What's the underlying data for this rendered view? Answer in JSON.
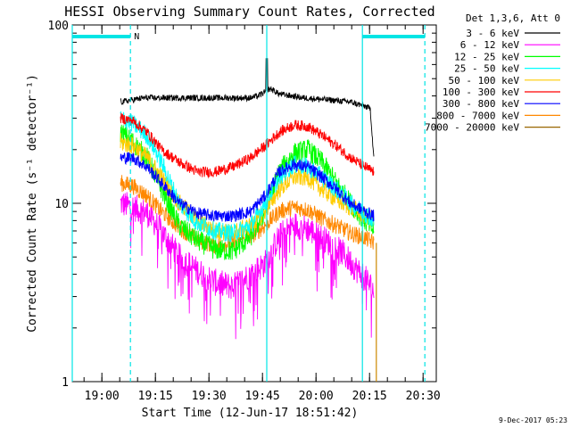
{
  "chart_data": {
    "type": "line",
    "title": "HESSI Observing Summary Count Rates, Corrected",
    "xlabel": "Start Time (12-Jun-17 18:51:42)",
    "ylabel": "Corrected Count Rate (s⁻¹ detector⁻¹)",
    "footer": "9-Dec-2017 05:23",
    "x_unit": "minutes after 18:51:42",
    "xlim": [
      0,
      102
    ],
    "ylim": [
      1,
      100
    ],
    "y_scale": "log",
    "x_ticks": [
      {
        "x": 8.3,
        "label": "19:00"
      },
      {
        "x": 23.3,
        "label": "19:15"
      },
      {
        "x": 38.3,
        "label": "19:30"
      },
      {
        "x": 53.3,
        "label": "19:45"
      },
      {
        "x": 68.3,
        "label": "20:00"
      },
      {
        "x": 83.3,
        "label": "20:15"
      },
      {
        "x": 98.3,
        "label": "20:30"
      }
    ],
    "y_ticks": [
      {
        "y": 1,
        "label": "1"
      },
      {
        "y": 10,
        "label": "10"
      },
      {
        "y": 100,
        "label": "100"
      }
    ],
    "legend_position": "top-right (outside plot)",
    "legend_header": "Det 1,3,6, Att 0",
    "series": [
      {
        "name": "3 - 6 keV",
        "color": "#000000",
        "noise": 0.04,
        "points": [
          [
            13.5,
            37
          ],
          [
            20,
            39
          ],
          [
            30,
            39
          ],
          [
            40,
            39
          ],
          [
            50,
            39
          ],
          [
            52,
            40
          ],
          [
            54,
            42
          ],
          [
            55.5,
            44
          ],
          [
            58,
            41
          ],
          [
            65,
            39
          ],
          [
            72,
            38
          ],
          [
            78,
            37
          ],
          [
            82,
            35
          ],
          [
            83.5,
            34
          ],
          [
            84.5,
            18
          ]
        ],
        "spike": [
          54.5,
          68
        ]
      },
      {
        "name": "6 - 12 keV",
        "color": "#ff00ff",
        "noise": 0.18,
        "points": [
          [
            13.5,
            10
          ],
          [
            17,
            9.5
          ],
          [
            21,
            8.8
          ],
          [
            25,
            7
          ],
          [
            30,
            5
          ],
          [
            35,
            4.2
          ],
          [
            40,
            3.6
          ],
          [
            45,
            3.4
          ],
          [
            50,
            4
          ],
          [
            54,
            4.6
          ],
          [
            58,
            6.5
          ],
          [
            62,
            7.6
          ],
          [
            66,
            7.2
          ],
          [
            72,
            6
          ],
          [
            76,
            5.2
          ],
          [
            80,
            4.2
          ],
          [
            83,
            3.6
          ],
          [
            84.5,
            3.2
          ]
        ]
      },
      {
        "name": "12 - 25 keV",
        "color": "#00ff00",
        "noise": 0.14,
        "points": [
          [
            13.5,
            25
          ],
          [
            17,
            22
          ],
          [
            21,
            18
          ],
          [
            25,
            12
          ],
          [
            30,
            7.5
          ],
          [
            35,
            6.2
          ],
          [
            40,
            5.5
          ],
          [
            45,
            5.4
          ],
          [
            50,
            6.5
          ],
          [
            54,
            9
          ],
          [
            58,
            15
          ],
          [
            62,
            19
          ],
          [
            66,
            20
          ],
          [
            70,
            17
          ],
          [
            74,
            13
          ],
          [
            78,
            10
          ],
          [
            82,
            8
          ],
          [
            84.5,
            7
          ]
        ]
      },
      {
        "name": "25 - 50 keV",
        "color": "#00ffff",
        "noise": 0.12,
        "points": [
          [
            13.5,
            30
          ],
          [
            17,
            28
          ],
          [
            21,
            24
          ],
          [
            25,
            17
          ],
          [
            30,
            10
          ],
          [
            35,
            7.8
          ],
          [
            40,
            7
          ],
          [
            45,
            6.8
          ],
          [
            50,
            7.5
          ],
          [
            54,
            10
          ],
          [
            58,
            14
          ],
          [
            62,
            16.5
          ],
          [
            66,
            16
          ],
          [
            70,
            14
          ],
          [
            74,
            12
          ],
          [
            78,
            10
          ],
          [
            82,
            8.8
          ],
          [
            84.5,
            8
          ]
        ]
      },
      {
        "name": "50 - 100 keV",
        "color": "#ffcc00",
        "noise": 0.12,
        "points": [
          [
            13.5,
            22
          ],
          [
            17,
            21
          ],
          [
            21,
            18
          ],
          [
            25,
            14
          ],
          [
            30,
            10
          ],
          [
            35,
            8
          ],
          [
            40,
            7
          ],
          [
            45,
            6.8
          ],
          [
            50,
            7.5
          ],
          [
            54,
            9
          ],
          [
            58,
            12
          ],
          [
            62,
            14
          ],
          [
            66,
            14
          ],
          [
            70,
            12
          ],
          [
            74,
            10.5
          ],
          [
            78,
            9.5
          ],
          [
            82,
            8.5
          ],
          [
            84.5,
            8
          ]
        ]
      },
      {
        "name": "100 - 300 keV",
        "color": "#ff0000",
        "noise": 0.07,
        "points": [
          [
            13.5,
            30
          ],
          [
            17,
            29
          ],
          [
            21,
            25
          ],
          [
            25,
            20
          ],
          [
            30,
            17
          ],
          [
            35,
            15
          ],
          [
            40,
            15
          ],
          [
            45,
            16
          ],
          [
            50,
            18
          ],
          [
            54,
            21
          ],
          [
            58,
            25
          ],
          [
            62,
            27.5
          ],
          [
            66,
            27
          ],
          [
            70,
            24
          ],
          [
            74,
            21
          ],
          [
            78,
            18
          ],
          [
            82,
            16
          ],
          [
            84.5,
            15
          ]
        ]
      },
      {
        "name": "300 - 800 keV",
        "color": "#0000ff",
        "noise": 0.08,
        "points": [
          [
            13.5,
            18
          ],
          [
            17,
            18
          ],
          [
            21,
            16
          ],
          [
            25,
            13
          ],
          [
            30,
            10
          ],
          [
            35,
            8.8
          ],
          [
            40,
            8.5
          ],
          [
            45,
            8.5
          ],
          [
            50,
            9
          ],
          [
            54,
            11
          ],
          [
            58,
            15
          ],
          [
            62,
            16.5
          ],
          [
            66,
            16
          ],
          [
            70,
            14
          ],
          [
            74,
            12
          ],
          [
            78,
            10
          ],
          [
            82,
            9
          ],
          [
            84.5,
            8.5
          ]
        ]
      },
      {
        "name": "800 - 7000 keV",
        "color": "#ff8800",
        "noise": 0.11,
        "points": [
          [
            13.5,
            13
          ],
          [
            17,
            12.5
          ],
          [
            21,
            11
          ],
          [
            25,
            9
          ],
          [
            30,
            7.3
          ],
          [
            35,
            6.2
          ],
          [
            40,
            5.8
          ],
          [
            45,
            6
          ],
          [
            50,
            6.5
          ],
          [
            54,
            7.5
          ],
          [
            58,
            9
          ],
          [
            62,
            9.5
          ],
          [
            66,
            9.2
          ],
          [
            70,
            8.2
          ],
          [
            74,
            7.5
          ],
          [
            78,
            6.8
          ],
          [
            82,
            6.4
          ],
          [
            84.5,
            6
          ]
        ]
      },
      {
        "name": "7000 - 20000 keV",
        "color": "#996600",
        "noise": 0.0,
        "points": []
      }
    ],
    "annotations": {
      "night_bar_color": "#00e5e5",
      "night_bars": [
        [
          0,
          16.3
        ],
        [
          81.3,
          98.8
        ]
      ],
      "night_marker_label": "N",
      "night_marker_x": 17.3,
      "saa_solid_lines": [
        0,
        54.5,
        81.3
      ],
      "dashed_lines": [
        16.3,
        98.8
      ],
      "end_marker_x": 85.2,
      "end_marker_color": "#cc8800"
    }
  }
}
